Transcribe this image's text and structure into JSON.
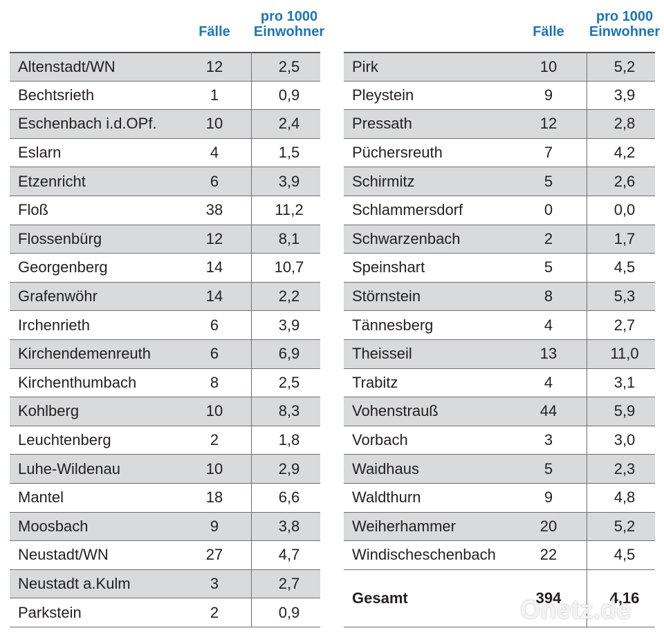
{
  "tables": [
    {
      "header": {
        "cases": "Fälle",
        "rate_line1": "pro 1000",
        "rate_line2": "Einwohner"
      },
      "rows": [
        [
          "Altenstadt/WN",
          "12",
          "2,5"
        ],
        [
          "Bechtsrieth",
          "1",
          "0,9"
        ],
        [
          "Eschenbach i.d.OPf.",
          "10",
          "2,4"
        ],
        [
          "Eslarn",
          "4",
          "1,5"
        ],
        [
          "Etzenricht",
          "6",
          "3,9"
        ],
        [
          "Floß",
          "38",
          "11,2"
        ],
        [
          "Flossenbürg",
          "12",
          "8,1"
        ],
        [
          "Georgenberg",
          "14",
          "10,7"
        ],
        [
          "Grafenwöhr",
          "14",
          "2,2"
        ],
        [
          "Irchenrieth",
          "6",
          "3,9"
        ],
        [
          "Kirchendemenreuth",
          "6",
          "6,9"
        ],
        [
          "Kirchenthumbach",
          "8",
          "2,5"
        ],
        [
          "Kohlberg",
          "10",
          "8,3"
        ],
        [
          "Leuchtenberg",
          "2",
          "1,8"
        ],
        [
          "Luhe-Wildenau",
          "10",
          "2,9"
        ],
        [
          "Mantel",
          "18",
          "6,6"
        ],
        [
          "Moosbach",
          "9",
          "3,8"
        ],
        [
          "Neustadt/WN",
          "27",
          "4,7"
        ],
        [
          "Neustadt a.Kulm",
          "3",
          "2,7"
        ],
        [
          "Parkstein",
          "2",
          "0,9"
        ]
      ]
    },
    {
      "header": {
        "cases": "Fälle",
        "rate_line1": "pro 1000",
        "rate_line2": "Einwohner"
      },
      "rows": [
        [
          "Pirk",
          "10",
          "5,2"
        ],
        [
          "Pleystein",
          "9",
          "3,9"
        ],
        [
          "Pressath",
          "12",
          "2,8"
        ],
        [
          "Püchersreuth",
          "7",
          "4,2"
        ],
        [
          "Schirmitz",
          "5",
          "2,6"
        ],
        [
          "Schlammersdorf",
          "0",
          "0,0"
        ],
        [
          "Schwarzenbach",
          "2",
          "1,7"
        ],
        [
          "Speinshart",
          "5",
          "4,5"
        ],
        [
          "Störnstein",
          "8",
          "5,3"
        ],
        [
          "Tännesberg",
          "4",
          "2,7"
        ],
        [
          "Theisseil",
          "13",
          "11,0"
        ],
        [
          "Trabitz",
          "4",
          "3,1"
        ],
        [
          "Vohenstrauß",
          "44",
          "5,9"
        ],
        [
          "Vorbach",
          "3",
          "3,0"
        ],
        [
          "Waidhaus",
          "5",
          "2,3"
        ],
        [
          "Waldthurn",
          "9",
          "4,8"
        ],
        [
          "Weiherhammer",
          "20",
          "5,2"
        ],
        [
          "Windischeschenbach",
          "22",
          "4,5"
        ]
      ],
      "total": [
        "Gesamt",
        "394",
        "4,16"
      ]
    }
  ],
  "watermark": "Onetz.de"
}
